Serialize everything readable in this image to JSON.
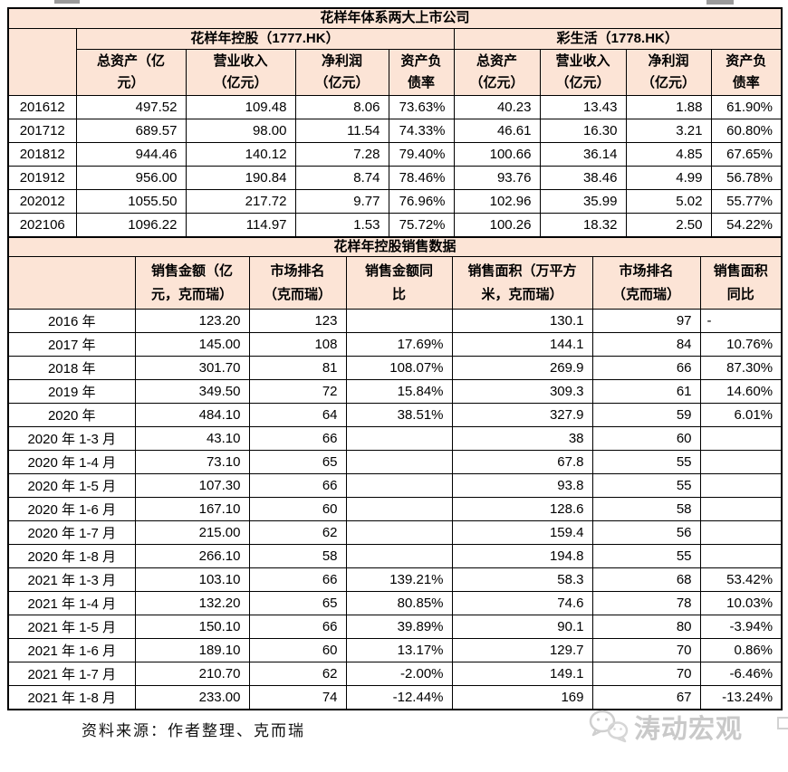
{
  "page": {
    "source_note": "资料来源：作者整理、克而瑞",
    "watermark": "涛动宏观"
  },
  "colors": {
    "header_background": "#fce4d6",
    "border": "#000000",
    "watermark_gray": "#c9c9c9"
  },
  "table1": {
    "title": "花样年体系两大上市公司",
    "company1": "花样年控股（1777.HK）",
    "company2": "彩生活（1778.HK）",
    "col_headers": [
      "总资产（亿\n元）",
      "营业收入\n（亿元）",
      "净利润\n（亿元）",
      "资产负\n债率",
      "总资产\n（亿元）",
      "营业收入\n（亿元）",
      "净利润\n（亿元）",
      "资产负\n债率"
    ],
    "rows": [
      [
        "201612",
        "497.52",
        "109.48",
        "8.06",
        "73.63%",
        "40.23",
        "13.43",
        "1.88",
        "61.90%"
      ],
      [
        "201712",
        "689.57",
        "98.00",
        "11.54",
        "74.33%",
        "46.61",
        "16.30",
        "3.21",
        "60.80%"
      ],
      [
        "201812",
        "944.46",
        "140.12",
        "7.28",
        "79.40%",
        "100.66",
        "36.14",
        "4.85",
        "67.65%"
      ],
      [
        "201912",
        "956.00",
        "190.84",
        "8.74",
        "78.46%",
        "93.76",
        "38.46",
        "4.99",
        "56.78%"
      ],
      [
        "202012",
        "1055.50",
        "217.72",
        "9.77",
        "76.96%",
        "102.96",
        "35.99",
        "5.02",
        "55.77%"
      ],
      [
        "202106",
        "1096.22",
        "114.97",
        "1.53",
        "75.72%",
        "100.26",
        "18.32",
        "2.50",
        "54.22%"
      ]
    ]
  },
  "table2": {
    "title": "花样年控股销售数据",
    "col_headers": [
      "销售金额（亿\n元，克而瑞）",
      "市场排名\n（克而瑞）",
      "销售金额同\n比",
      "销售面积（万平方\n米，克而瑞）",
      "市场排名\n（克而瑞）",
      "销售面积\n同比"
    ],
    "rows": [
      [
        "2016 年",
        "123.20",
        "123",
        "",
        "130.1",
        "97",
        "-"
      ],
      [
        "2017 年",
        "145.00",
        "108",
        "17.69%",
        "144.1",
        "84",
        "10.76%"
      ],
      [
        "2018 年",
        "301.70",
        "81",
        "108.07%",
        "269.9",
        "66",
        "87.30%"
      ],
      [
        "2019 年",
        "349.50",
        "72",
        "15.84%",
        "309.3",
        "61",
        "14.60%"
      ],
      [
        "2020 年",
        "484.10",
        "64",
        "38.51%",
        "327.9",
        "59",
        "6.01%"
      ],
      [
        "2020 年 1-3 月",
        "43.10",
        "66",
        "",
        "38",
        "60",
        ""
      ],
      [
        "2020 年 1-4 月",
        "73.10",
        "65",
        "",
        "67.8",
        "55",
        ""
      ],
      [
        "2020 年 1-5 月",
        "107.30",
        "66",
        "",
        "93.8",
        "55",
        ""
      ],
      [
        "2020 年 1-6 月",
        "167.10",
        "60",
        "",
        "128.6",
        "58",
        ""
      ],
      [
        "2020 年 1-7 月",
        "215.00",
        "62",
        "",
        "159.4",
        "56",
        ""
      ],
      [
        "2020 年 1-8 月",
        "266.10",
        "58",
        "",
        "194.8",
        "55",
        ""
      ],
      [
        "2021 年 1-3 月",
        "103.10",
        "66",
        "139.21%",
        "58.3",
        "68",
        "53.42%"
      ],
      [
        "2021 年 1-4 月",
        "132.20",
        "65",
        "80.85%",
        "74.6",
        "78",
        "10.03%"
      ],
      [
        "2021 年 1-5 月",
        "150.10",
        "66",
        "39.89%",
        "90.1",
        "80",
        "-3.94%"
      ],
      [
        "2021 年 1-6 月",
        "189.10",
        "60",
        "13.17%",
        "129.7",
        "70",
        "0.86%"
      ],
      [
        "2021 年 1-7 月",
        "210.70",
        "62",
        "-2.00%",
        "149.1",
        "70",
        "-6.46%"
      ],
      [
        "2021 年 1-8 月",
        "233.00",
        "74",
        "-12.44%",
        "169",
        "67",
        "-13.24%"
      ]
    ]
  }
}
